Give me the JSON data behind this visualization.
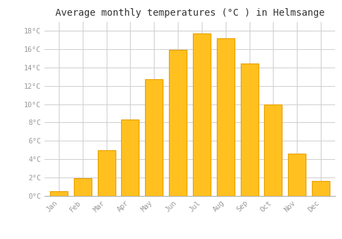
{
  "months": [
    "Jan",
    "Feb",
    "Mar",
    "Apr",
    "May",
    "Jun",
    "Jul",
    "Aug",
    "Sep",
    "Oct",
    "Nov",
    "Dec"
  ],
  "values": [
    0.5,
    1.9,
    5.0,
    8.3,
    12.7,
    15.9,
    17.7,
    17.2,
    14.4,
    10.0,
    4.6,
    1.6
  ],
  "bar_color": "#FFC020",
  "bar_edge_color": "#E8A000",
  "title": "Average monthly temperatures (°C ) in Helmsange",
  "title_fontsize": 10,
  "ylabel_ticks": [
    "0°C",
    "2°C",
    "4°C",
    "6°C",
    "8°C",
    "10°C",
    "12°C",
    "14°C",
    "16°C",
    "18°C"
  ],
  "ytick_values": [
    0,
    2,
    4,
    6,
    8,
    10,
    12,
    14,
    16,
    18
  ],
  "ylim": [
    0,
    19.0
  ],
  "background_color": "#ffffff",
  "grid_color": "#cccccc",
  "tick_label_color": "#999999",
  "tick_label_fontsize": 7.5,
  "font_family": "monospace",
  "bar_width": 0.75
}
